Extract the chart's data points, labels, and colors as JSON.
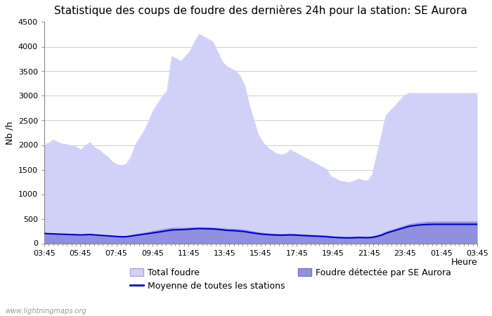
{
  "title": "Statistique des coups de foudre des dernières 24h pour la station: SE Aurora",
  "xlabel": "Heure",
  "ylabel": "Nb /h",
  "ylim": [
    0,
    4500
  ],
  "yticks": [
    0,
    500,
    1000,
    1500,
    2000,
    2500,
    3000,
    3500,
    4000,
    4500
  ],
  "xtick_labels": [
    "03:45",
    "05:45",
    "07:45",
    "09:45",
    "11:45",
    "13:45",
    "15:45",
    "17:45",
    "19:45",
    "21:45",
    "23:45",
    "01:45",
    "03:45"
  ],
  "watermark": "www.lightningmaps.org",
  "total_foudre_color": "#d0d0f8",
  "station_foudre_color": "#9090dd",
  "moyenne_line_color": "#0000cc",
  "background_color": "#ffffff",
  "title_fontsize": 11,
  "label_fontsize": 9,
  "tick_fontsize": 8,
  "total_foudre_y": [
    2000,
    2040,
    2100,
    2050,
    2020,
    2010,
    1980,
    1960,
    1900,
    1980,
    2050,
    1950,
    1900,
    1820,
    1750,
    1650,
    1600,
    1580,
    1610,
    1750,
    2000,
    2150,
    2300,
    2500,
    2720,
    2850,
    3000,
    3100,
    3800,
    3750,
    3700,
    3800,
    3900,
    4100,
    4250,
    4200,
    4150,
    4100,
    3900,
    3700,
    3600,
    3550,
    3500,
    3400,
    3200,
    2800,
    2500,
    2200,
    2050,
    1950,
    1880,
    1820,
    1800,
    1820,
    1900,
    1850,
    1800,
    1750,
    1700,
    1650,
    1600,
    1550,
    1500,
    1350,
    1310,
    1260,
    1250,
    1230,
    1270,
    1310,
    1280,
    1270,
    1400,
    1800,
    2200,
    2600,
    2700,
    2800,
    2900,
    3000,
    3050,
    3050,
    3050,
    3050,
    3050,
    3050,
    3050,
    3050,
    3050,
    3050,
    3050,
    3050,
    3050,
    3050,
    3050,
    3050
  ],
  "station_foudre_y": [
    180,
    185,
    190,
    185,
    182,
    180,
    175,
    172,
    168,
    172,
    178,
    170,
    165,
    158,
    152,
    145,
    140,
    138,
    142,
    155,
    175,
    190,
    205,
    225,
    245,
    262,
    278,
    295,
    310,
    310,
    308,
    312,
    315,
    318,
    320,
    318,
    315,
    312,
    308,
    300,
    292,
    288,
    285,
    278,
    268,
    252,
    235,
    218,
    205,
    195,
    188,
    182,
    180,
    182,
    185,
    182,
    178,
    172,
    168,
    162,
    158,
    152,
    148,
    138,
    132,
    125,
    122,
    120,
    125,
    130,
    128,
    125,
    135,
    155,
    188,
    230,
    260,
    290,
    318,
    345,
    380,
    395,
    410,
    420,
    428,
    432,
    435,
    436,
    436,
    436,
    436,
    436,
    436,
    436,
    436,
    436
  ],
  "moyenne_y": [
    200,
    195,
    192,
    188,
    185,
    182,
    178,
    175,
    170,
    175,
    180,
    172,
    165,
    158,
    152,
    145,
    138,
    132,
    135,
    148,
    162,
    175,
    188,
    200,
    215,
    228,
    242,
    258,
    272,
    275,
    278,
    282,
    288,
    295,
    300,
    298,
    295,
    292,
    285,
    275,
    265,
    260,
    255,
    248,
    238,
    222,
    208,
    195,
    185,
    178,
    172,
    168,
    165,
    168,
    172,
    168,
    162,
    158,
    152,
    148,
    145,
    140,
    135,
    125,
    120,
    115,
    112,
    110,
    114,
    118,
    116,
    114,
    122,
    140,
    165,
    205,
    235,
    262,
    290,
    318,
    345,
    358,
    370,
    378,
    382,
    385,
    386,
    386,
    386,
    386,
    386,
    386,
    386,
    386,
    386,
    386
  ]
}
